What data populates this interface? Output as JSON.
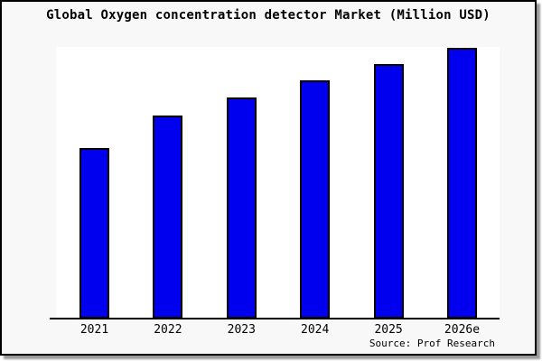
{
  "title": "Global Oxygen concentration detector Market (Million USD)",
  "source_note": "Source: Prof Research",
  "colors": {
    "canvas_background": "#f8f8f8",
    "plot_background": "#ffffff",
    "bar_fill": "#0000ee",
    "bar_border": "#000000",
    "frame_border": "#000000",
    "drop_shadow": "#9a9a9a",
    "text": "#000000"
  },
  "chart_data": {
    "type": "bar",
    "title": "Global Oxygen concentration detector Market (Million USD)",
    "xlabel": "",
    "ylabel": "",
    "categories": [
      "2021",
      "2022",
      "2023",
      "2024",
      "2025",
      "2026e"
    ],
    "values": [
      189,
      225,
      245,
      264,
      282,
      300
    ],
    "value_note": "y-axis has no tick labels; values are relative bar heights estimated in plot pixels",
    "ylim": [
      0,
      301
    ],
    "grid": false,
    "legend": false,
    "annotations": [
      "Source: Prof Research"
    ]
  }
}
